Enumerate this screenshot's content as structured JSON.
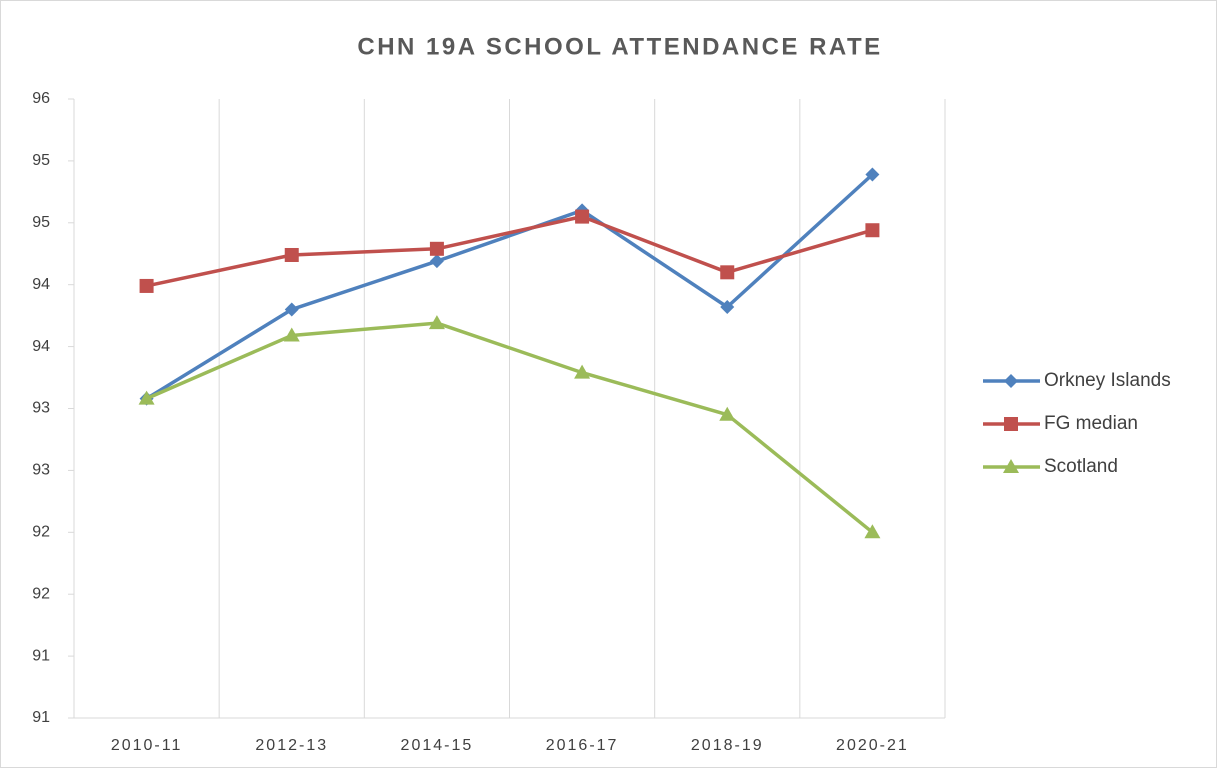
{
  "chart_data": {
    "type": "line",
    "title": "CHN 19A SCHOOL ATTENDANCE RATE",
    "categories": [
      "2010-11",
      "2012-13",
      "2014-15",
      "2016-17",
      "2018-19",
      "2020-21"
    ],
    "series": [
      {
        "name": "Orkney Islands",
        "color": "#4f81bd",
        "marker": "diamond",
        "values": [
          93.08,
          93.8,
          94.19,
          94.6,
          93.82,
          94.89
        ]
      },
      {
        "name": "FG median",
        "color": "#c0504d",
        "marker": "square",
        "values": [
          93.99,
          94.24,
          94.29,
          94.55,
          94.1,
          94.44
        ]
      },
      {
        "name": "Scotland",
        "color": "#9bbb59",
        "marker": "triangle",
        "values": [
          93.08,
          93.59,
          93.69,
          93.29,
          92.95,
          92.0
        ]
      }
    ],
    "ylim": [
      90.5,
      95.5
    ],
    "yticks": [
      {
        "value": 90.5,
        "label": "91"
      },
      91,
      {
        "value": 91.5,
        "label": "92"
      },
      92,
      {
        "value": 92.5,
        "label": "93"
      },
      93,
      {
        "value": 93.5,
        "label": "94"
      },
      94,
      {
        "value": 94.5,
        "label": "95"
      },
      95,
      {
        "value": 95.5,
        "label": "96"
      }
    ],
    "grid": true,
    "legend": "right"
  }
}
